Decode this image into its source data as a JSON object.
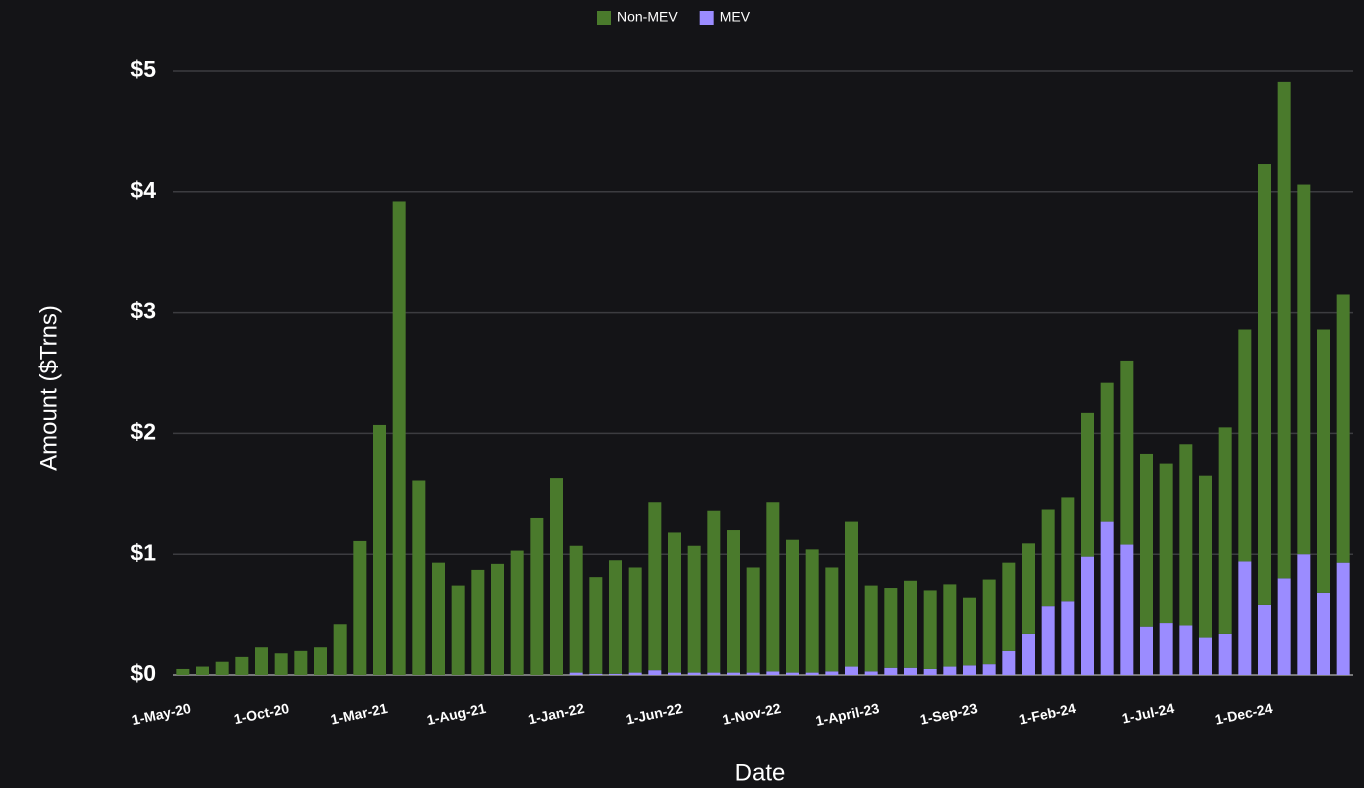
{
  "chart_data": {
    "type": "stacked_bar",
    "x_title": "Date",
    "y_title": "Amount ($Trns)",
    "categories": [
      "1-May-20",
      null,
      null,
      null,
      null,
      "1-Oct-20",
      null,
      null,
      null,
      null,
      "1-Mar-21",
      null,
      null,
      null,
      null,
      "1-Aug-21",
      null,
      null,
      null,
      null,
      "1-Jan-22",
      null,
      null,
      null,
      null,
      "1-Jun-22",
      null,
      null,
      null,
      null,
      "1-Nov-22",
      null,
      null,
      null,
      null,
      "1-April-23",
      null,
      null,
      null,
      null,
      "1-Sep-23",
      null,
      null,
      null,
      null,
      "1-Feb-24",
      null,
      null,
      null,
      null,
      "1-Jul-24",
      null,
      null,
      null,
      null,
      "1-Dec-24",
      null,
      null,
      null,
      null
    ],
    "series": [
      {
        "name": "Non-MEV",
        "color": "#4a7a2c",
        "values": [
          0.05,
          0.07,
          0.11,
          0.15,
          0.23,
          0.18,
          0.2,
          0.23,
          0.42,
          1.11,
          2.07,
          3.92,
          1.61,
          0.93,
          0.74,
          0.87,
          0.92,
          1.03,
          1.3,
          1.63,
          1.05,
          0.8,
          0.94,
          0.87,
          1.39,
          1.16,
          1.05,
          1.34,
          1.18,
          0.87,
          1.4,
          1.1,
          1.02,
          0.86,
          1.2,
          0.71,
          0.66,
          0.72,
          0.65,
          0.68,
          0.56,
          0.7,
          0.73,
          0.75,
          0.8,
          0.86,
          1.19,
          1.15,
          1.52,
          1.43,
          1.32,
          1.5,
          1.34,
          1.71,
          1.92,
          3.65,
          4.11,
          3.06,
          2.18,
          2.22
        ]
      },
      {
        "name": "MEV",
        "color": "#9b8cff",
        "values": [
          0,
          0,
          0,
          0,
          0,
          0,
          0,
          0,
          0,
          0,
          0,
          0,
          0,
          0,
          0,
          0,
          0,
          0,
          0,
          0,
          0.02,
          0.01,
          0.01,
          0.02,
          0.04,
          0.02,
          0.02,
          0.02,
          0.02,
          0.02,
          0.03,
          0.02,
          0.02,
          0.03,
          0.07,
          0.03,
          0.06,
          0.06,
          0.05,
          0.07,
          0.08,
          0.09,
          0.2,
          0.34,
          0.57,
          0.61,
          0.98,
          1.27,
          1.08,
          0.4,
          0.43,
          0.41,
          0.31,
          0.34,
          0.94,
          0.58,
          0.8,
          1.0,
          0.68,
          0.93
        ]
      }
    ],
    "ylim": [
      0,
      5
    ],
    "yticks": [
      {
        "value": 0,
        "label": "$0"
      },
      {
        "value": 1,
        "label": "$1"
      },
      {
        "value": 2,
        "label": "$2"
      },
      {
        "value": 3,
        "label": "$3"
      },
      {
        "value": 4,
        "label": "$4"
      },
      {
        "value": 5,
        "label": "$5"
      }
    ],
    "grid": true,
    "legend": "top"
  }
}
